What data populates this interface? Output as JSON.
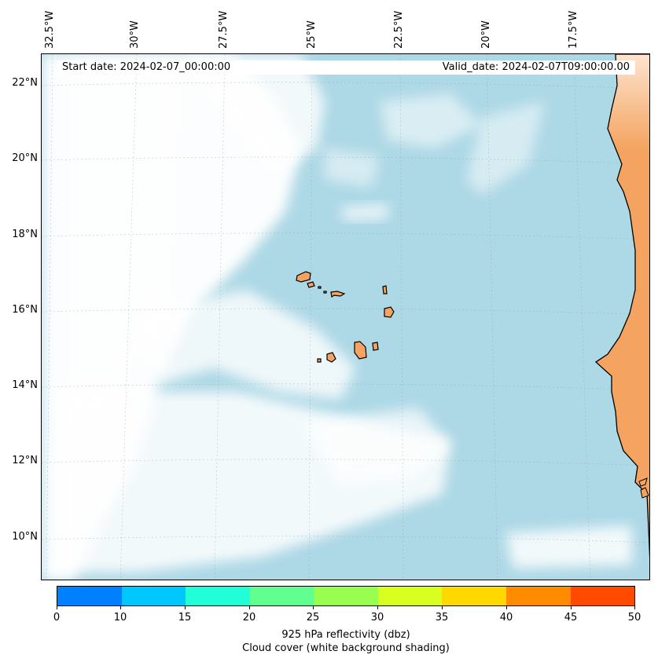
{
  "map": {
    "start_date": "Start date: 2024-02-07_00:00:00",
    "valid_date": "Valid_date: 2024-02-07T09:00:00.00",
    "longitude_labels": [
      "32.5°W",
      "30°W",
      "27.5°W",
      "25°W",
      "22.5°W",
      "20°W",
      "17.5°W"
    ],
    "latitude_labels": [
      "22°N",
      "20°N",
      "18°N",
      "16°N",
      "14°N",
      "12°N",
      "10°N"
    ],
    "colors": {
      "ocean": "#add8e6",
      "land": "#f4a460",
      "cloud": "#ffffff"
    }
  },
  "colorbar": {
    "ticks": [
      "0",
      "10",
      "15",
      "20",
      "25",
      "30",
      "35",
      "40",
      "45",
      "50"
    ],
    "colors": [
      "#0080ff",
      "#00c8ff",
      "#20ffd8",
      "#60ff90",
      "#98ff50",
      "#d8ff20",
      "#ffd800",
      "#ff8c00",
      "#ff4a00"
    ],
    "title": "925 hPa reflectivity (dbz)",
    "subtitle": "Cloud cover (white background shading)"
  }
}
